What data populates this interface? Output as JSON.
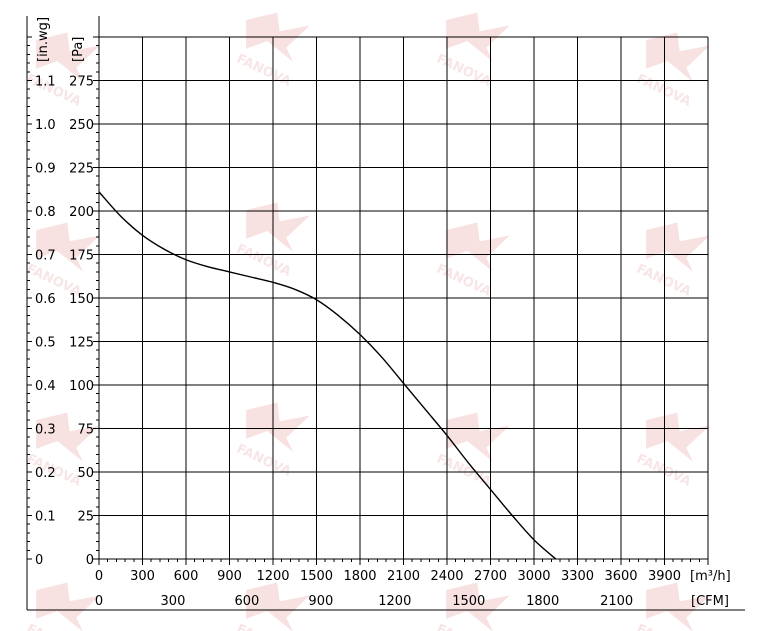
{
  "chart_data": {
    "type": "line",
    "x_unit_label": "[m³/h]",
    "x2_unit_label": "[CFM]",
    "y_unit_label": "[Pa]",
    "y2_unit_label": "[in.wg]",
    "x_ticks": [
      "0",
      "300",
      "600",
      "900",
      "1200",
      "1500",
      "1800",
      "2100",
      "2400",
      "2700",
      "3000",
      "3300",
      "3600",
      "3900"
    ],
    "x2_ticks": [
      "0",
      "300",
      "600",
      "900",
      "1200",
      "1500",
      "1800",
      "2100"
    ],
    "x2_tick_positions_m3h": [
      0,
      510,
      1020,
      1530,
      2040,
      2550,
      3060,
      3570
    ],
    "y_ticks": [
      "0",
      "25",
      "50",
      "75",
      "100",
      "125",
      "150",
      "175",
      "200",
      "225",
      "250",
      "275"
    ],
    "y2_ticks": [
      "0",
      "0.1",
      "0.2",
      "0.3",
      "0.4",
      "0.5",
      "0.6",
      "0.7",
      "0.8",
      "0.9",
      "1.0",
      "1.1"
    ],
    "y2_tick_positions_pa": [
      0,
      25,
      50,
      75,
      100,
      125,
      150,
      175,
      200,
      225,
      250,
      275
    ],
    "xlim": [
      0,
      4200
    ],
    "ylim": [
      0,
      300
    ],
    "grid": true,
    "series": [
      {
        "values_x": [
          0,
          150,
          300,
          450,
          600,
          750,
          900,
          1050,
          1200,
          1350,
          1500,
          1650,
          1800,
          1950,
          2100,
          2250,
          2400,
          2550,
          2700,
          2850,
          3000,
          3150
        ],
        "values_y": [
          211,
          197,
          186,
          178,
          172,
          168,
          165,
          162,
          159,
          155,
          149,
          140,
          129,
          116,
          101,
          86,
          71,
          55,
          40,
          25,
          11,
          0
        ]
      }
    ],
    "watermark": "FANOVA"
  }
}
